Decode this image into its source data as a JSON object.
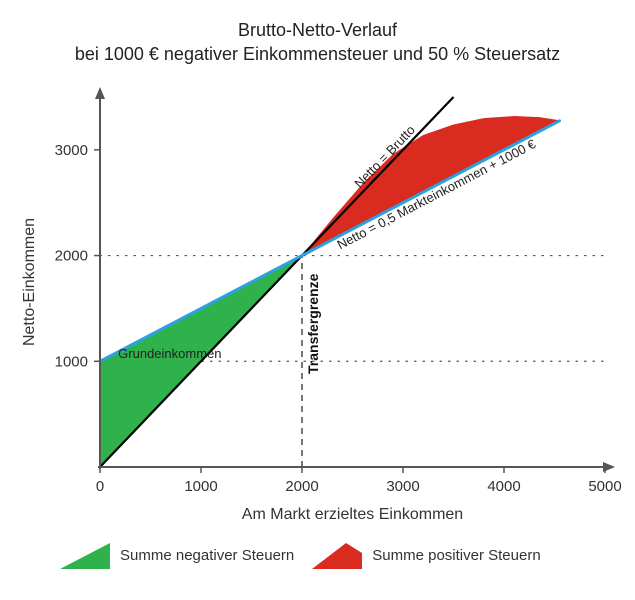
{
  "title": {
    "line1": "Brutto-Netto-Verlauf",
    "line2": "bei 1000 € negativer Einkommensteuer und 50 % Steuersatz",
    "fontsize": 18,
    "color": "#222222"
  },
  "chart": {
    "type": "line-area",
    "background_color": "#ffffff",
    "x": {
      "label": "Am Markt erzieltes Einkommen",
      "min": 0,
      "max": 5000,
      "ticks": [
        0,
        1000,
        2000,
        3000,
        4000,
        5000
      ],
      "label_fontsize": 16,
      "tick_fontsize": 15
    },
    "y": {
      "label": "Netto-Einkommen",
      "min": 0,
      "max": 3500,
      "ticks": [
        1000,
        2000,
        3000
      ],
      "label_fontsize": 16,
      "tick_fontsize": 15
    },
    "grid": {
      "color": "#555555",
      "style": "dotted",
      "horizontal_at": [
        1000,
        2000
      ],
      "vertical_dashed_at": 2000,
      "vertical_dashed_color": "#555555"
    },
    "axis_line_color": "#555555",
    "axis_line_width": 2,
    "series": {
      "brutto": {
        "label": "Netto = Brutto",
        "color": "#000000",
        "width": 2.2,
        "points": [
          [
            0,
            0
          ],
          [
            3500,
            3500
          ]
        ]
      },
      "netto": {
        "label": "Netto = 0,5 Markteinkommen + 1000 €",
        "color": "#2aa1e0",
        "width": 3,
        "points": [
          [
            0,
            1000
          ],
          [
            4550,
            3275
          ]
        ]
      },
      "red_top": {
        "comment": "slightly wavy upper edge of red region",
        "points": [
          [
            2000,
            2000
          ],
          [
            2300,
            2350
          ],
          [
            2600,
            2680
          ],
          [
            2900,
            2960
          ],
          [
            3200,
            3140
          ],
          [
            3500,
            3240
          ],
          [
            3800,
            3300
          ],
          [
            4100,
            3320
          ],
          [
            4350,
            3310
          ],
          [
            4550,
            3280
          ]
        ]
      }
    },
    "areas": {
      "negative_tax": {
        "fill": "#2fb24c",
        "between": [
          "brutto",
          "netto"
        ],
        "x_range": [
          0,
          2000
        ]
      },
      "positive_tax": {
        "fill": "#d92b1f",
        "between": [
          "netto",
          "red_top"
        ],
        "x_range": [
          2000,
          4550
        ]
      }
    },
    "annotations": {
      "grundeinkommen": {
        "text": "Grundeinkommen",
        "at": [
          180,
          1030
        ],
        "fontsize": 14
      },
      "transfergrenze": {
        "text": "Transfergrenze",
        "at_x": 2000,
        "rotated": true,
        "fontsize": 14,
        "weight": "bold"
      },
      "netto_brutto": {
        "text": "Netto = Brutto",
        "along": "brutto",
        "fontsize": 13
      },
      "netto_formula": {
        "text": "Netto = 0,5 Markteinkommen + 1000 €",
        "along": "netto",
        "fontsize": 12
      }
    }
  },
  "legend": {
    "items": [
      {
        "swatch": "#2fb24c",
        "label": "Summe negativer Steuern"
      },
      {
        "swatch": "#d92b1f",
        "label": "Summe positiver Steuern"
      }
    ],
    "fontsize": 15
  }
}
